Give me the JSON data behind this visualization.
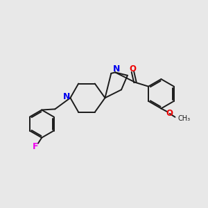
{
  "bg_color": "#e8e8e8",
  "bond_color": "#1a1a1a",
  "N_color": "#0000ee",
  "O_color": "#ee0000",
  "F_color": "#ee00ee",
  "lw": 1.4,
  "figsize": [
    3.0,
    3.0
  ],
  "dpi": 100,
  "xlim": [
    0,
    10
  ],
  "ylim": [
    0,
    10
  ]
}
